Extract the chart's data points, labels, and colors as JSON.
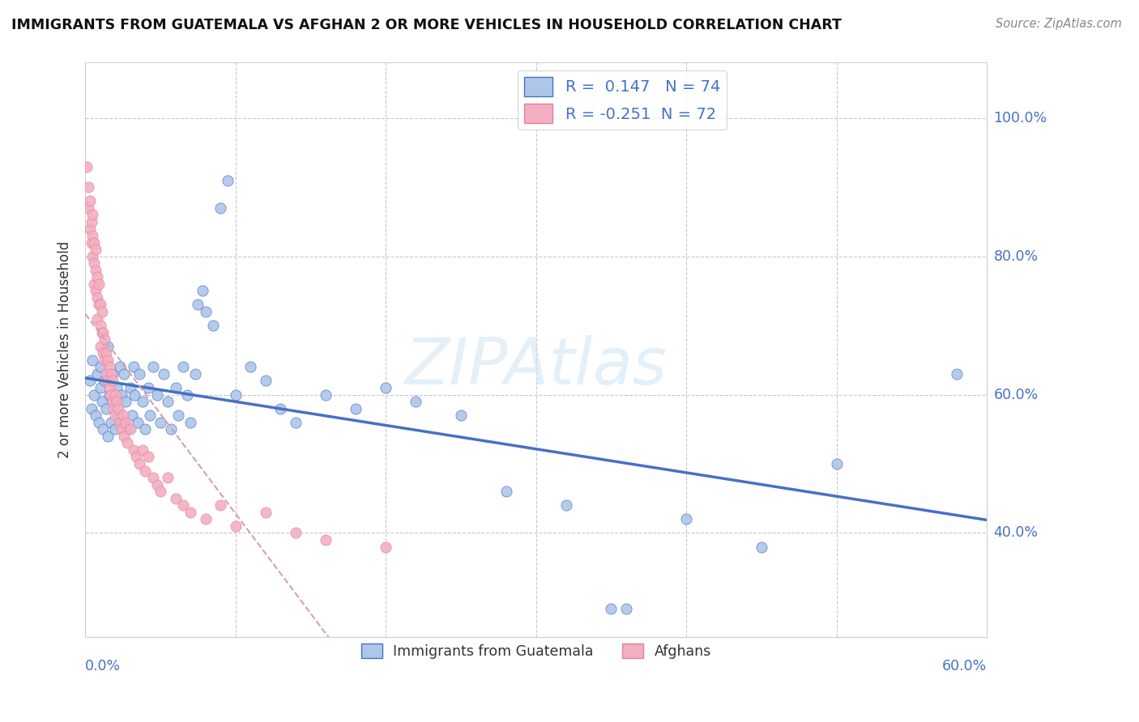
{
  "title": "IMMIGRANTS FROM GUATEMALA VS AFGHAN 2 OR MORE VEHICLES IN HOUSEHOLD CORRELATION CHART",
  "source": "Source: ZipAtlas.com",
  "ylabel": "2 or more Vehicles in Household",
  "xlim": [
    0.0,
    0.6
  ],
  "ylim": [
    0.25,
    1.08
  ],
  "R_guatemala": 0.147,
  "N_guatemala": 74,
  "R_afghan": -0.251,
  "N_afghan": 72,
  "color_guatemala": "#aec6e8",
  "color_afghan": "#f4afc0",
  "color_line_guatemala": "#4472c4",
  "color_line_afghan": "#d4a0b0",
  "watermark": "ZIPAtlas",
  "legend_label_guatemala": "Immigrants from Guatemala",
  "legend_label_afghan": "Afghans",
  "guatemala_x": [
    0.003,
    0.004,
    0.005,
    0.006,
    0.007,
    0.008,
    0.009,
    0.01,
    0.01,
    0.011,
    0.012,
    0.013,
    0.014,
    0.015,
    0.015,
    0.016,
    0.017,
    0.018,
    0.019,
    0.02,
    0.021,
    0.022,
    0.023,
    0.024,
    0.025,
    0.026,
    0.027,
    0.028,
    0.03,
    0.031,
    0.032,
    0.033,
    0.035,
    0.036,
    0.038,
    0.04,
    0.042,
    0.043,
    0.045,
    0.048,
    0.05,
    0.052,
    0.055,
    0.057,
    0.06,
    0.062,
    0.065,
    0.068,
    0.07,
    0.073,
    0.075,
    0.078,
    0.08,
    0.085,
    0.09,
    0.095,
    0.1,
    0.11,
    0.12,
    0.13,
    0.14,
    0.16,
    0.18,
    0.2,
    0.22,
    0.25,
    0.28,
    0.32,
    0.35,
    0.36,
    0.4,
    0.45,
    0.5,
    0.58
  ],
  "guatemala_y": [
    0.62,
    0.58,
    0.65,
    0.6,
    0.57,
    0.63,
    0.56,
    0.61,
    0.64,
    0.59,
    0.55,
    0.62,
    0.58,
    0.54,
    0.67,
    0.6,
    0.56,
    0.63,
    0.59,
    0.55,
    0.61,
    0.57,
    0.64,
    0.6,
    0.56,
    0.63,
    0.59,
    0.55,
    0.61,
    0.57,
    0.64,
    0.6,
    0.56,
    0.63,
    0.59,
    0.55,
    0.61,
    0.57,
    0.64,
    0.6,
    0.56,
    0.63,
    0.59,
    0.55,
    0.61,
    0.57,
    0.64,
    0.6,
    0.56,
    0.63,
    0.73,
    0.75,
    0.72,
    0.7,
    0.87,
    0.91,
    0.6,
    0.64,
    0.62,
    0.58,
    0.56,
    0.6,
    0.58,
    0.61,
    0.59,
    0.57,
    0.46,
    0.44,
    0.29,
    0.29,
    0.42,
    0.38,
    0.5,
    0.63
  ],
  "afghan_x": [
    0.001,
    0.002,
    0.002,
    0.003,
    0.003,
    0.004,
    0.004,
    0.005,
    0.005,
    0.005,
    0.006,
    0.006,
    0.006,
    0.007,
    0.007,
    0.007,
    0.008,
    0.008,
    0.008,
    0.009,
    0.009,
    0.01,
    0.01,
    0.01,
    0.011,
    0.011,
    0.012,
    0.012,
    0.013,
    0.013,
    0.014,
    0.014,
    0.015,
    0.015,
    0.016,
    0.016,
    0.017,
    0.017,
    0.018,
    0.018,
    0.019,
    0.02,
    0.02,
    0.021,
    0.022,
    0.023,
    0.024,
    0.025,
    0.026,
    0.027,
    0.028,
    0.03,
    0.032,
    0.034,
    0.036,
    0.038,
    0.04,
    0.042,
    0.045,
    0.048,
    0.05,
    0.055,
    0.06,
    0.065,
    0.07,
    0.08,
    0.09,
    0.1,
    0.12,
    0.14,
    0.16,
    0.2
  ],
  "afghan_y": [
    0.93,
    0.9,
    0.87,
    0.84,
    0.88,
    0.82,
    0.85,
    0.8,
    0.83,
    0.86,
    0.79,
    0.82,
    0.76,
    0.78,
    0.81,
    0.75,
    0.74,
    0.77,
    0.71,
    0.73,
    0.76,
    0.7,
    0.73,
    0.67,
    0.69,
    0.72,
    0.66,
    0.69,
    0.65,
    0.68,
    0.63,
    0.66,
    0.62,
    0.65,
    0.61,
    0.64,
    0.6,
    0.63,
    0.59,
    0.62,
    0.58,
    0.6,
    0.57,
    0.59,
    0.58,
    0.56,
    0.55,
    0.57,
    0.54,
    0.56,
    0.53,
    0.55,
    0.52,
    0.51,
    0.5,
    0.52,
    0.49,
    0.51,
    0.48,
    0.47,
    0.46,
    0.48,
    0.45,
    0.44,
    0.43,
    0.42,
    0.44,
    0.41,
    0.43,
    0.4,
    0.39,
    0.38
  ]
}
